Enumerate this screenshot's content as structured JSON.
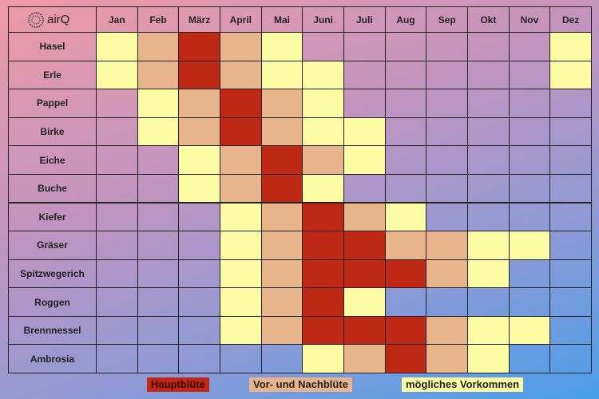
{
  "logo": "airQ",
  "months": [
    "Jan",
    "Feb",
    "März",
    "April",
    "Mai",
    "Juni",
    "Juli",
    "Aug",
    "Sep",
    "Okt",
    "Nov",
    "Dez"
  ],
  "legend": [
    {
      "label": "Hauptblüte",
      "color": "#be2814"
    },
    {
      "label": "Vor- und Nachblüte",
      "color": "#e8b48c"
    },
    {
      "label": "mögliches Vorkommen",
      "color": "#fcfca4"
    }
  ],
  "rows": [
    {
      "name": "Hasel",
      "cells": [
        2,
        1,
        0,
        1,
        2,
        null,
        null,
        null,
        null,
        null,
        null,
        2
      ]
    },
    {
      "name": "Erle",
      "cells": [
        2,
        1,
        0,
        1,
        2,
        2,
        null,
        null,
        null,
        null,
        null,
        2
      ]
    },
    {
      "name": "Pappel",
      "cells": [
        null,
        2,
        1,
        0,
        1,
        2,
        null,
        null,
        null,
        null,
        null,
        null
      ]
    },
    {
      "name": "Birke",
      "cells": [
        null,
        2,
        1,
        0,
        1,
        2,
        2,
        null,
        null,
        null,
        null,
        null
      ]
    },
    {
      "name": "Eiche",
      "cells": [
        null,
        null,
        2,
        1,
        0,
        1,
        2,
        null,
        null,
        null,
        null,
        null
      ]
    },
    {
      "name": "Buche",
      "cells": [
        null,
        null,
        2,
        1,
        0,
        2,
        null,
        null,
        null,
        null,
        null,
        null
      ]
    },
    {
      "name": "Kiefer",
      "cells": [
        null,
        null,
        null,
        2,
        1,
        0,
        1,
        2,
        null,
        null,
        null,
        null
      ]
    },
    {
      "name": "Gräser",
      "cells": [
        null,
        null,
        null,
        2,
        1,
        0,
        0,
        1,
        1,
        2,
        2,
        null
      ]
    },
    {
      "name": "Spitzwegerich",
      "cells": [
        null,
        null,
        null,
        2,
        1,
        0,
        0,
        0,
        1,
        2,
        null,
        null
      ]
    },
    {
      "name": "Roggen",
      "cells": [
        null,
        null,
        null,
        2,
        1,
        0,
        2,
        null,
        null,
        null,
        null,
        null
      ]
    },
    {
      "name": "Brennnessel",
      "cells": [
        null,
        null,
        null,
        2,
        1,
        0,
        0,
        0,
        1,
        2,
        2,
        null
      ]
    },
    {
      "name": "Ambrosia",
      "cells": [
        null,
        null,
        null,
        null,
        null,
        2,
        1,
        0,
        1,
        2,
        null,
        null
      ]
    }
  ]
}
